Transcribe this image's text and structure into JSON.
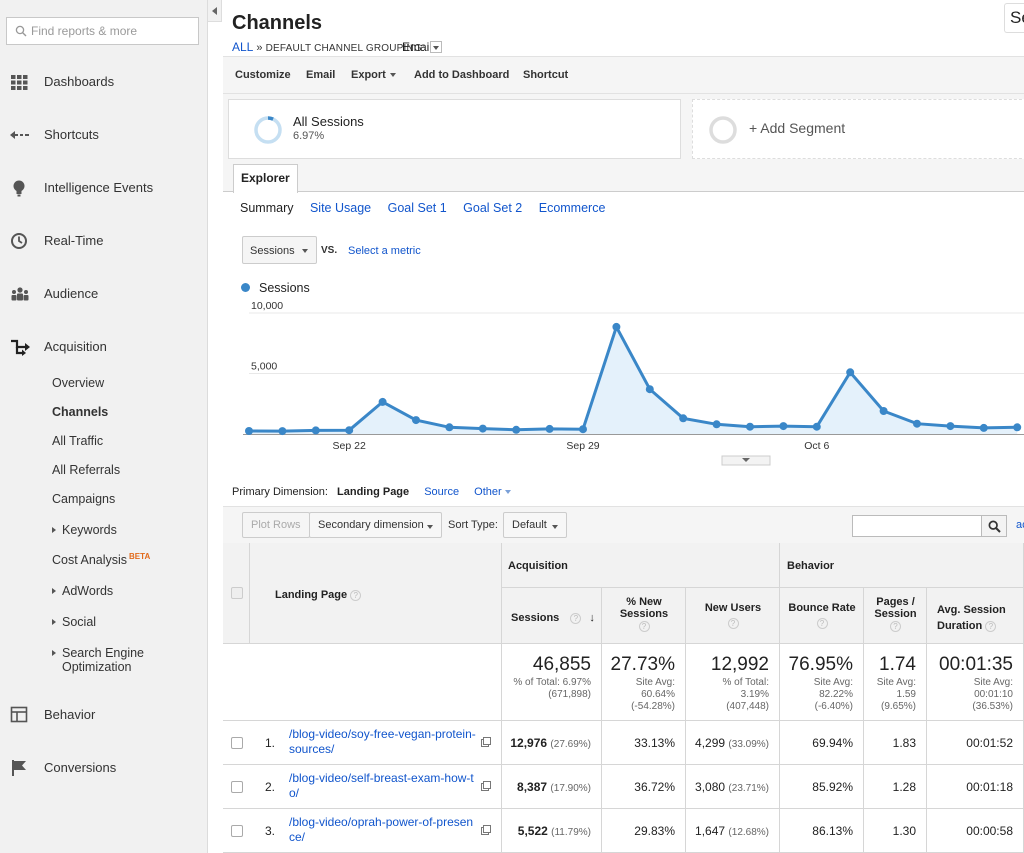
{
  "sidebar": {
    "search_placeholder": "Find reports & more",
    "items": [
      {
        "label": "Dashboards",
        "icon": "grid-icon"
      },
      {
        "label": "Shortcuts",
        "icon": "shortcut-arrow-icon"
      },
      {
        "label": "Intelligence Events",
        "icon": "lightbulb-icon"
      },
      {
        "label": "Real-Time",
        "icon": "clock-icon"
      },
      {
        "label": "Audience",
        "icon": "people-icon"
      },
      {
        "label": "Acquisition",
        "icon": "acquisition-arrows-icon"
      },
      {
        "label": "Behavior",
        "icon": "layout-icon"
      },
      {
        "label": "Conversions",
        "icon": "flag-icon"
      }
    ],
    "acquisition_sub": [
      {
        "label": "Overview"
      },
      {
        "label": "Channels"
      },
      {
        "label": "All Traffic"
      },
      {
        "label": "All Referrals"
      },
      {
        "label": "Campaigns"
      },
      {
        "label": "Keywords"
      },
      {
        "label": "Cost Analysis",
        "badge": "BETA"
      },
      {
        "label": "AdWords"
      },
      {
        "label": "Social"
      },
      {
        "label": "Search Engine",
        "label2": "Optimization"
      }
    ]
  },
  "header": {
    "title": "Channels",
    "top_right_text": "Se",
    "breadcrumb_all": "ALL",
    "breadcrumb_sep": "»",
    "grouping_label": "DEFAULT CHANNEL GROUPING:",
    "grouping_value": "Email"
  },
  "toolbar": {
    "customize": "Customize",
    "email": "Email",
    "export": "Export",
    "add_to_dashboard": "Add to Dashboard",
    "shortcut": "Shortcut"
  },
  "segments": {
    "seg1_name": "All Sessions",
    "seg1_pct": "6.97%",
    "seg1_fraction": 0.0697,
    "add_segment": "+ Add Segment"
  },
  "explorer": {
    "tab": "Explorer",
    "subtabs": [
      "Summary",
      "Site Usage",
      "Goal Set 1",
      "Goal Set 2",
      "Ecommerce"
    ],
    "metric": "Sessions",
    "vs": "VS.",
    "select_metric": "Select a metric"
  },
  "colors": {
    "line": "#3a87c8",
    "fill": "#e4f1fb",
    "link": "#1155cc",
    "beta": "#e26a1b"
  },
  "chart_data": {
    "type": "area",
    "legend": "Sessions",
    "y_ticks": [
      "10,000",
      "5,000"
    ],
    "ylim": [
      0,
      10000
    ],
    "x_tick_labels": [
      {
        "index": 3,
        "label": "Sep 22"
      },
      {
        "index": 10,
        "label": "Sep 29"
      },
      {
        "index": 17,
        "label": "Oct 6"
      }
    ],
    "series": [
      {
        "name": "Sessions",
        "values": [
          250,
          240,
          300,
          310,
          2650,
          1150,
          550,
          450,
          350,
          420,
          400,
          8850,
          3700,
          1300,
          800,
          600,
          650,
          600,
          5100,
          1900,
          850,
          650,
          500,
          550
        ]
      }
    ]
  },
  "table_controls": {
    "primary_dimension_label": "Primary Dimension:",
    "primary_dimension_value": "Landing Page",
    "source": "Source",
    "other": "Other",
    "plot_rows": "Plot Rows",
    "secondary_dimension": "Secondary dimension",
    "sort_type_label": "Sort Type:",
    "sort_type_value": "Default",
    "advanced": "ac"
  },
  "table": {
    "group_acquisition": "Acquisition",
    "group_behavior": "Behavior",
    "col_landing_page": "Landing Page",
    "cols": {
      "sessions": "Sessions",
      "new_sessions": "% New Sessions",
      "new_users": "New Users",
      "bounce_rate": "Bounce Rate",
      "pages_session": "Pages / Session",
      "avg_duration": "Avg. Session Duration"
    },
    "totals": {
      "sessions": "46,855",
      "sessions_sub": [
        "% of Total: 6.97%",
        "(671,898)"
      ],
      "new_sessions": "27.73%",
      "new_sessions_sub": [
        "Site Avg:",
        "60.64%",
        "(-54.28%)"
      ],
      "new_users": "12,992",
      "new_users_sub": [
        "% of Total:",
        "3.19%",
        "(407,448)"
      ],
      "bounce_rate": "76.95%",
      "bounce_rate_sub": [
        "Site Avg:",
        "82.22%",
        "(-6.40%)"
      ],
      "pages_session": "1.74",
      "pages_session_sub": [
        "Site Avg:",
        "1.59",
        "(9.65%)"
      ],
      "avg_duration": "00:01:35",
      "avg_duration_sub": [
        "Site Avg:",
        "00:01:10",
        "(36.53%)"
      ]
    },
    "rows": [
      {
        "n": "1.",
        "page": "/blog-video/soy-free-vegan-protein-sources/",
        "sessions": "12,976",
        "sessions_pct": "(27.69%)",
        "new_sessions": "33.13%",
        "new_users": "4,299",
        "new_users_pct": "(33.09%)",
        "bounce_rate": "69.94%",
        "pages_session": "1.83",
        "avg_duration": "00:01:52"
      },
      {
        "n": "2.",
        "page": "/blog-video/self-breast-exam-how-to/",
        "sessions": "8,387",
        "sessions_pct": "(17.90%)",
        "new_sessions": "36.72%",
        "new_users": "3,080",
        "new_users_pct": "(23.71%)",
        "bounce_rate": "85.92%",
        "pages_session": "1.28",
        "avg_duration": "00:01:18"
      },
      {
        "n": "3.",
        "page": "/blog-video/oprah-power-of-presence/",
        "sessions": "5,522",
        "sessions_pct": "(11.79%)",
        "new_sessions": "29.83%",
        "new_users": "1,647",
        "new_users_pct": "(12.68%)",
        "bounce_rate": "86.13%",
        "pages_session": "1.30",
        "avg_duration": "00:00:58"
      }
    ]
  }
}
